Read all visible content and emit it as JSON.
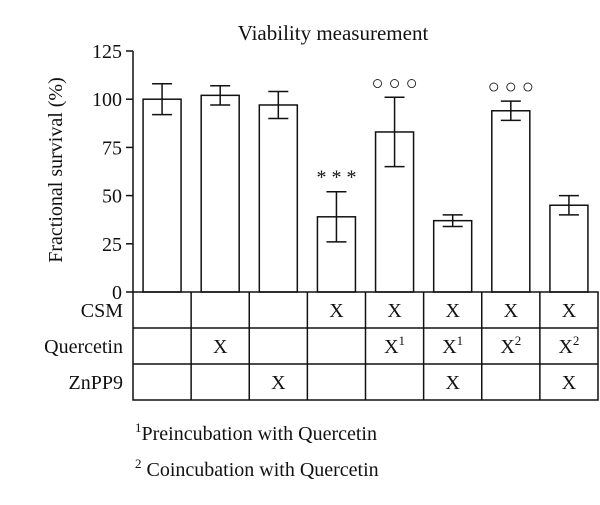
{
  "chart_data": {
    "type": "bar",
    "title": "Viability measurement",
    "ylabel": "Fractional survival (%)",
    "xlabel": "",
    "ylim": [
      0,
      125
    ],
    "yticks": [
      0,
      25,
      50,
      75,
      100,
      125
    ],
    "grid": false,
    "values": [
      100,
      102,
      97,
      39,
      83,
      37,
      94,
      45
    ],
    "errors": [
      8,
      5,
      7,
      13,
      18,
      3,
      5,
      5
    ],
    "annotations": [
      "",
      "",
      "",
      "* * *",
      "○ ○ ○",
      "",
      "○ ○ ○",
      ""
    ],
    "bar_color": "#ffffff",
    "edge_color": "#111111",
    "table": {
      "rows": [
        {
          "label": "CSM",
          "cells": [
            "",
            "",
            "",
            "X",
            "X",
            "X",
            "X",
            "X"
          ],
          "sup": [
            "",
            "",
            "",
            "",
            "",
            "",
            "",
            ""
          ]
        },
        {
          "label": "Quercetin",
          "cells": [
            "",
            "X",
            "",
            "",
            "X",
            "X",
            "X",
            "X"
          ],
          "sup": [
            "",
            "",
            "",
            "",
            "1",
            "1",
            "2",
            "2"
          ]
        },
        {
          "label": "ZnPP9",
          "cells": [
            "",
            "",
            "X",
            "",
            "",
            "X",
            "",
            "X"
          ],
          "sup": [
            "",
            "",
            "",
            "",
            "",
            "",
            "",
            ""
          ]
        }
      ]
    }
  },
  "footnotes": [
    {
      "sup": "1",
      "text": "Preincubation with Quercetin"
    },
    {
      "sup": "2",
      "text": " Coincubation with Quercetin"
    }
  ]
}
